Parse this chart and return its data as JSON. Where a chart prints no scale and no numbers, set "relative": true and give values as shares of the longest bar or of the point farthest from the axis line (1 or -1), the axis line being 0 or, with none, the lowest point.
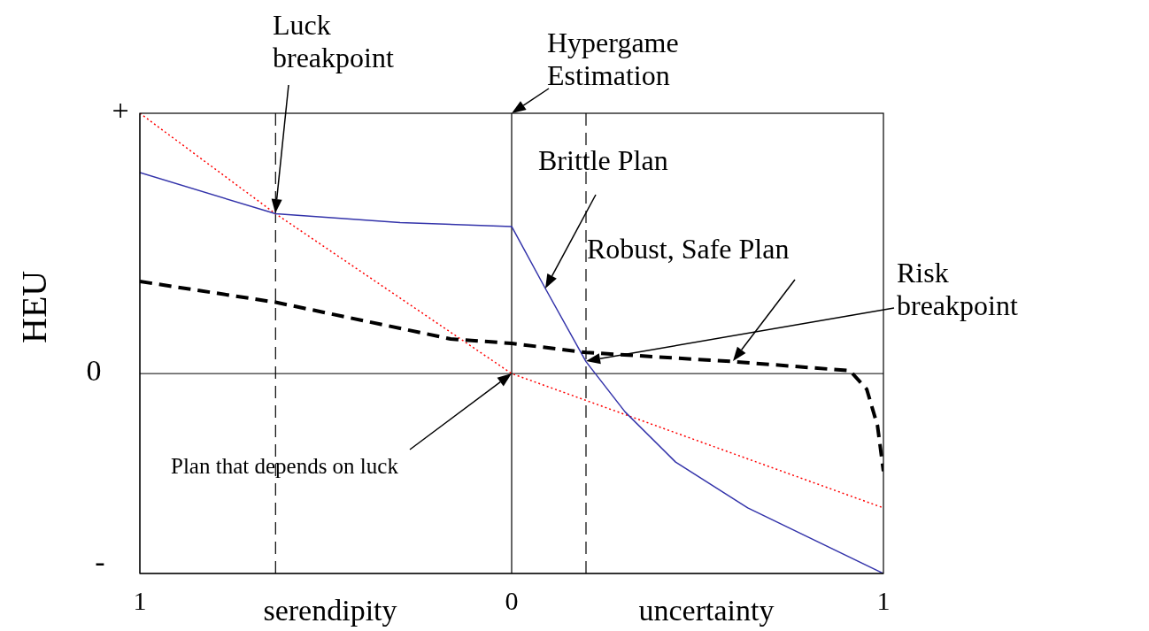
{
  "chart_data": {
    "type": "line",
    "relative": true,
    "ylabel": "HEU",
    "xlim": [
      -1,
      1
    ],
    "xticks": [
      {
        "value": -1,
        "label": "1"
      },
      0,
      1
    ],
    "series": [
      {
        "color": "#ff0000",
        "line_style": "dotted",
        "x": [
          -1,
          -0.635,
          0,
          1
        ],
        "values": [
          1,
          0.614,
          0,
          -0.516
        ]
      },
      {
        "color": "#3333aa",
        "line_style": "solid",
        "x": [
          -1,
          -0.635,
          -0.3,
          0,
          0.091,
          0.2,
          0.305,
          0.441,
          0.635,
          1
        ],
        "values": [
          0.772,
          0.614,
          0.58,
          0.565,
          0.326,
          0.046,
          -0.147,
          -0.34,
          -0.516,
          -0.768
        ]
      },
      {
        "color": "#000000",
        "line_style": "dashed",
        "x": [
          -1,
          -0.635,
          -0.164,
          0,
          0.2,
          0.596,
          0.91,
          0.955,
          0.984,
          1
        ],
        "values": [
          0.354,
          0.274,
          0.133,
          0.116,
          0.081,
          0.046,
          0.011,
          -0.06,
          -0.2,
          -0.375
        ]
      }
    ],
    "ref_lines": [
      {
        "axis": "x",
        "value": 0,
        "line_style": "solid"
      },
      {
        "axis": "x",
        "value": -0.635,
        "line_style": "dashed"
      },
      {
        "axis": "x",
        "value": 0.2,
        "line_style": "dashed"
      }
    ],
    "annotations": [
      "Luck breakpoint",
      "Hypergame Estimation",
      "Brittle Plan",
      "Robust, Safe Plan",
      "Risk breakpoint",
      "Plan that depends on luck",
      "+",
      "0",
      "-",
      "serendipity",
      "uncertainty"
    ]
  }
}
